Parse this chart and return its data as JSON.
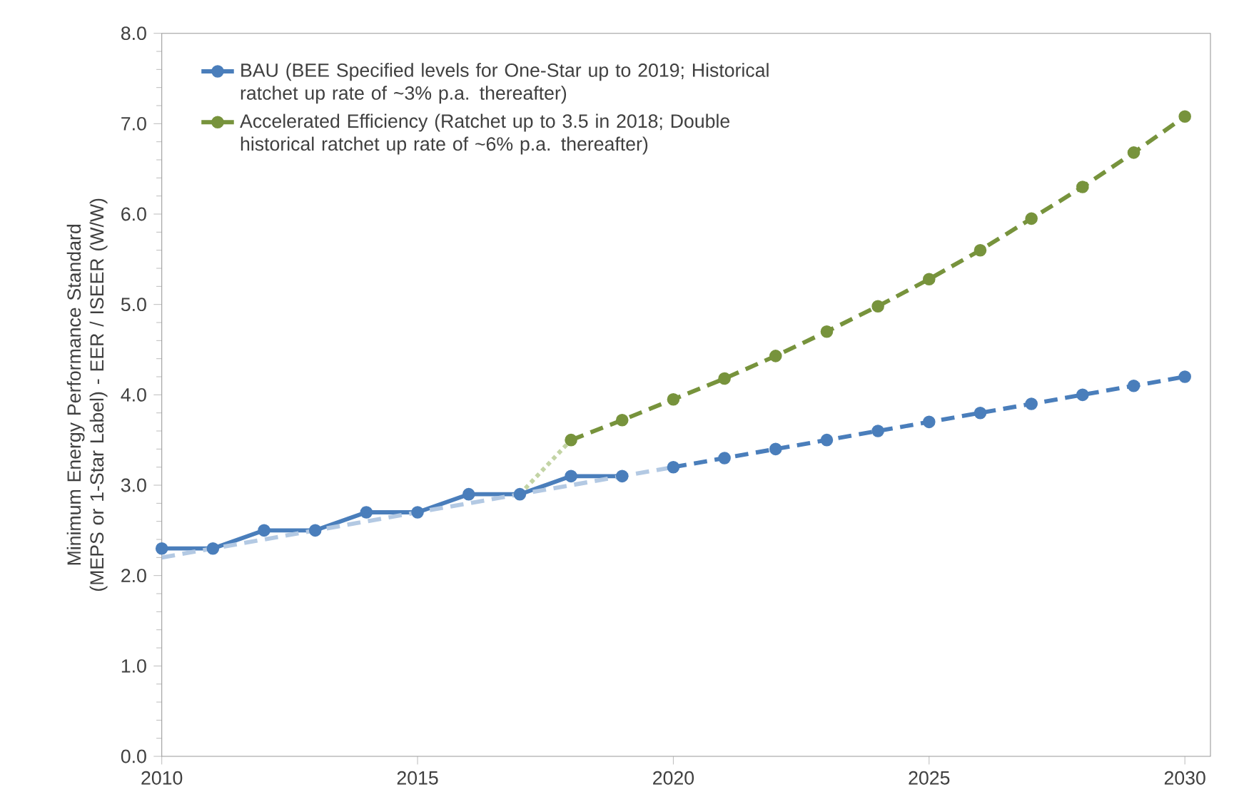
{
  "chart_data": {
    "type": "line",
    "ylabel": "Minimum Energy Performance Standard (MEPS or 1-Star Label) - EER / ISEER (W/W)",
    "xlim": [
      2010,
      2030.5
    ],
    "ylim": [
      0,
      8
    ],
    "xticks": [
      2010,
      2015,
      2020,
      2025,
      2030
    ],
    "yticks": [
      {
        "value": 0,
        "label": "0.0"
      },
      {
        "value": 1,
        "label": "1.0"
      },
      {
        "value": 2,
        "label": "2.0"
      },
      {
        "value": 3,
        "label": "3.0"
      },
      {
        "value": 4,
        "label": "4.0"
      },
      {
        "value": 5,
        "label": "5.0"
      },
      {
        "value": 6,
        "label": "6.0"
      },
      {
        "value": 7,
        "label": "7.0"
      },
      {
        "value": 8,
        "label": "8.0"
      }
    ],
    "grid": false,
    "legend": "top left",
    "marker": "circle",
    "series": [
      {
        "name": "BAU (BEE Specified levels for One-Star up to 2019; Historical ratchet up rate of ~3% p.a. thereafter)",
        "color": "#4a7ebb",
        "line_style": "solid",
        "x": [
          2010,
          2011,
          2012,
          2013,
          2014,
          2015,
          2016,
          2017,
          2018,
          2019
        ],
        "values": [
          2.3,
          2.3,
          2.5,
          2.5,
          2.7,
          2.7,
          2.9,
          2.9,
          3.1,
          3.1
        ]
      },
      {
        "color": "#4a7ebb",
        "line_style": "dashed",
        "x": [
          2020,
          2021,
          2022,
          2023,
          2024,
          2025,
          2026,
          2027,
          2028,
          2029,
          2030
        ],
        "values": [
          3.2,
          3.3,
          3.4,
          3.5,
          3.6,
          3.7,
          3.8,
          3.9,
          4.0,
          4.1,
          4.2
        ]
      },
      {
        "name": "Accelerated Efficiency (Ratchet up to 3.5 in 2018; Double historical ratchet up rate of ~6% p.a. thereafter)",
        "color": "#77933c",
        "line_style": "dashed",
        "x": [
          2018,
          2019,
          2020,
          2021,
          2022,
          2023,
          2024,
          2025,
          2026,
          2027,
          2028,
          2029,
          2030
        ],
        "values": [
          3.5,
          3.72,
          3.95,
          4.18,
          4.43,
          4.7,
          4.98,
          5.28,
          5.6,
          5.95,
          6.3,
          6.68,
          7.08
        ]
      },
      {
        "color": "#b3c9e3",
        "line_style": "dashed",
        "marker": "none",
        "x": [
          2010,
          2020
        ],
        "values": [
          2.2,
          3.2
        ]
      },
      {
        "color": "#c3d4a5",
        "line_style": "dotted",
        "marker": "none",
        "x": [
          2017,
          2018
        ],
        "values": [
          2.9,
          3.5
        ]
      }
    ]
  }
}
